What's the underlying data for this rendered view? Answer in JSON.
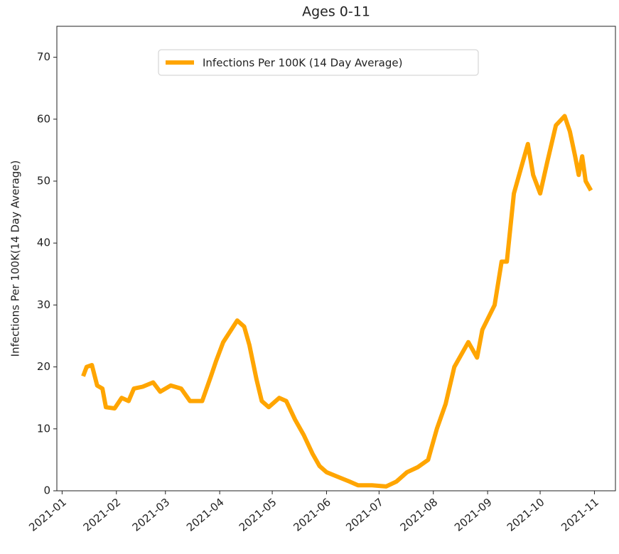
{
  "chart_data": {
    "type": "line",
    "title": "Ages 0-11",
    "y_label": "Infections Per 100K(14 Day Average)",
    "x": [
      "2021-01-13",
      "2021-01-15",
      "2021-01-18",
      "2021-01-21",
      "2021-01-24",
      "2021-01-26",
      "2021-01-31",
      "2021-02-04",
      "2021-02-08",
      "2021-02-11",
      "2021-02-16",
      "2021-02-22",
      "2021-02-26",
      "2021-03-04",
      "2021-03-10",
      "2021-03-15",
      "2021-03-22",
      "2021-03-27",
      "2021-03-30",
      "2021-04-03",
      "2021-04-11",
      "2021-04-15",
      "2021-04-18",
      "2021-04-22",
      "2021-04-25",
      "2021-04-29",
      "2021-05-05",
      "2021-05-09",
      "2021-05-14",
      "2021-05-19",
      "2021-05-24",
      "2021-05-28",
      "2021-06-01",
      "2021-06-07",
      "2021-06-14",
      "2021-06-19",
      "2021-06-27",
      "2021-07-05",
      "2021-07-11",
      "2021-07-17",
      "2021-07-23",
      "2021-07-29",
      "2021-08-03",
      "2021-08-08",
      "2021-08-13",
      "2021-08-21",
      "2021-08-26",
      "2021-08-29",
      "2021-09-05",
      "2021-09-09",
      "2021-09-12",
      "2021-09-16",
      "2021-09-20",
      "2021-09-24",
      "2021-09-27",
      "2021-10-01",
      "2021-10-05",
      "2021-10-10",
      "2021-10-15",
      "2021-10-18",
      "2021-10-21",
      "2021-10-23",
      "2021-10-25",
      "2021-10-27",
      "2021-10-30"
    ],
    "series": [
      {
        "name": "Infections Per 100K (14 Day Average)",
        "color": "#ffa500",
        "values": [
          18.5,
          20,
          20.3,
          17,
          16.5,
          13.5,
          13.3,
          15,
          14.5,
          16.5,
          16.8,
          17.5,
          16,
          17,
          16.5,
          14.5,
          14.5,
          18.5,
          21,
          24,
          27.5,
          26.5,
          23.5,
          18,
          14.5,
          13.5,
          15,
          14.5,
          11.5,
          9,
          6,
          4,
          3,
          2.3,
          1.5,
          0.9,
          0.9,
          0.7,
          1.5,
          3,
          3.8,
          5,
          10,
          14,
          20,
          24,
          21.5,
          26,
          30,
          37,
          37,
          48,
          52,
          56,
          51,
          48,
          53,
          59,
          60.5,
          58,
          54,
          51,
          54,
          50,
          48.5
        ]
      }
    ],
    "xlim": [
      "2020-12-29",
      "2021-11-13"
    ],
    "xticks": [
      "2021-01",
      "2021-02",
      "2021-03",
      "2021-04",
      "2021-05",
      "2021-06",
      "2021-07",
      "2021-08",
      "2021-09",
      "2021-10",
      "2021-11"
    ],
    "ylim": [
      0,
      75
    ],
    "yticks": [
      0,
      10,
      20,
      30,
      40,
      50,
      60,
      70
    ],
    "legend": "upper center"
  }
}
